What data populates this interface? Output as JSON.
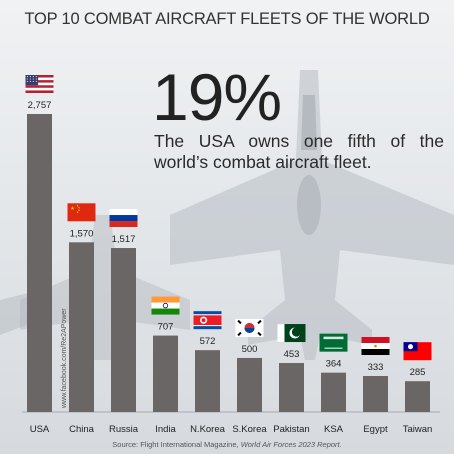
{
  "source_prefix": "Source: Flight International Magazine, ",
  "source_report": "World Air Forces 2023 Report.",
  "watermark": "www.facebook.com/Re2APower",
  "highlight": {
    "percent": "19%",
    "text": "The USA owns one fifth of the world’s combat aircraft fleet."
  },
  "colors": {
    "bar": "#6b6666",
    "text": "#222222"
  },
  "chart_data": {
    "type": "bar",
    "title": "TOP 10 COMBAT AIRCRAFT FLEETS OF THE WORLD",
    "xlabel": "",
    "ylabel": "",
    "grid": false,
    "categories": [
      "USA",
      "China",
      "Russia",
      "India",
      "N.Korea",
      "S.Korea",
      "Pakistan",
      "KSA",
      "Egypt",
      "Taiwan"
    ],
    "values": [
      2757,
      1570,
      1517,
      707,
      572,
      500,
      453,
      364,
      333,
      285
    ],
    "data_labels": [
      "2,757",
      "1,570",
      "1,517",
      "707",
      "572",
      "500",
      "453",
      "364",
      "333",
      "285"
    ],
    "flags": [
      "usa-flag",
      "china-flag",
      "russia-flag",
      "india-flag",
      "north-korea-flag",
      "south-korea-flag",
      "pakistan-flag",
      "saudi-arabia-flag",
      "egypt-flag",
      "taiwan-flag"
    ]
  }
}
